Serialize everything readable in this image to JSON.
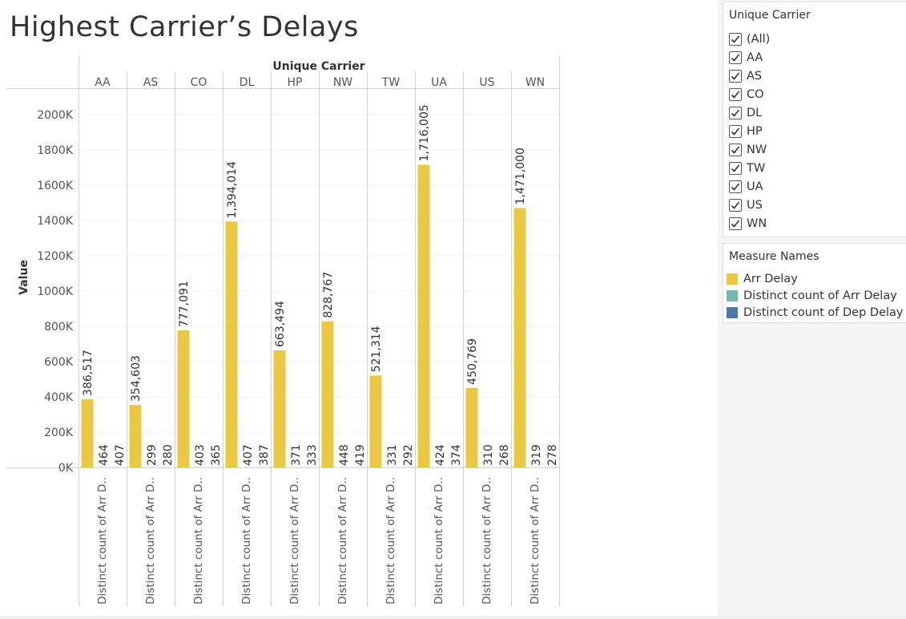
{
  "page": {
    "title": "Highest Carrier’s Delays"
  },
  "filter": {
    "title": "Unique Carrier",
    "items": [
      {
        "label": "(All)",
        "checked": true
      },
      {
        "label": "AA",
        "checked": true
      },
      {
        "label": "AS",
        "checked": true
      },
      {
        "label": "CO",
        "checked": true
      },
      {
        "label": "DL",
        "checked": true
      },
      {
        "label": "HP",
        "checked": true
      },
      {
        "label": "NW",
        "checked": true
      },
      {
        "label": "TW",
        "checked": true
      },
      {
        "label": "UA",
        "checked": true
      },
      {
        "label": "US",
        "checked": true
      },
      {
        "label": "WN",
        "checked": true
      }
    ]
  },
  "legend": {
    "title": "Measure Names",
    "items": [
      {
        "label": "Arr Delay",
        "color": "#ebc844"
      },
      {
        "label": "Distinct count of Arr Delay",
        "color": "#73b6b2"
      },
      {
        "label": "Distinct count of Dep Delay",
        "color": "#4e79a7"
      }
    ]
  },
  "chart_data": {
    "type": "bar",
    "column_header": "Unique Carrier",
    "ylabel": "Value",
    "ylim": [
      0,
      2150000
    ],
    "yticks": [
      0,
      200000,
      400000,
      600000,
      800000,
      1000000,
      1200000,
      1400000,
      1600000,
      1800000,
      2000000
    ],
    "ytick_labels": [
      "0K",
      "200K",
      "400K",
      "600K",
      "800K",
      "1000K",
      "1200K",
      "1400K",
      "1600K",
      "1800K",
      "2000K"
    ],
    "grid": true,
    "x_label_truncated": "Distinct count of Arr D..",
    "categories": [
      "AA",
      "AS",
      "CO",
      "DL",
      "HP",
      "NW",
      "TW",
      "UA",
      "US",
      "WN"
    ],
    "series": [
      {
        "name": "Arr Delay",
        "color": "#ebc844",
        "values": [
          386517,
          354603,
          777091,
          1394014,
          663494,
          828767,
          521314,
          1716005,
          450769,
          1471000
        ],
        "labels": [
          "386,517",
          "354,603",
          "777,091",
          "1,394,014",
          "663,494",
          "828,767",
          "521,314",
          "1,716,005",
          "450,769",
          "1,471,000"
        ]
      },
      {
        "name": "Distinct count of Arr Delay",
        "color": "#73b6b2",
        "values": [
          464,
          299,
          403,
          407,
          371,
          448,
          331,
          424,
          310,
          319
        ],
        "labels": [
          "464",
          "299",
          "403",
          "407",
          "371",
          "448",
          "331",
          "424",
          "310",
          "319"
        ]
      },
      {
        "name": "Distinct count of Dep Delay",
        "color": "#4e79a7",
        "values": [
          407,
          280,
          365,
          387,
          333,
          419,
          292,
          374,
          268,
          278
        ],
        "labels": [
          "407",
          "280",
          "365",
          "387",
          "333",
          "419",
          "292",
          "374",
          "268",
          "278"
        ]
      }
    ]
  }
}
